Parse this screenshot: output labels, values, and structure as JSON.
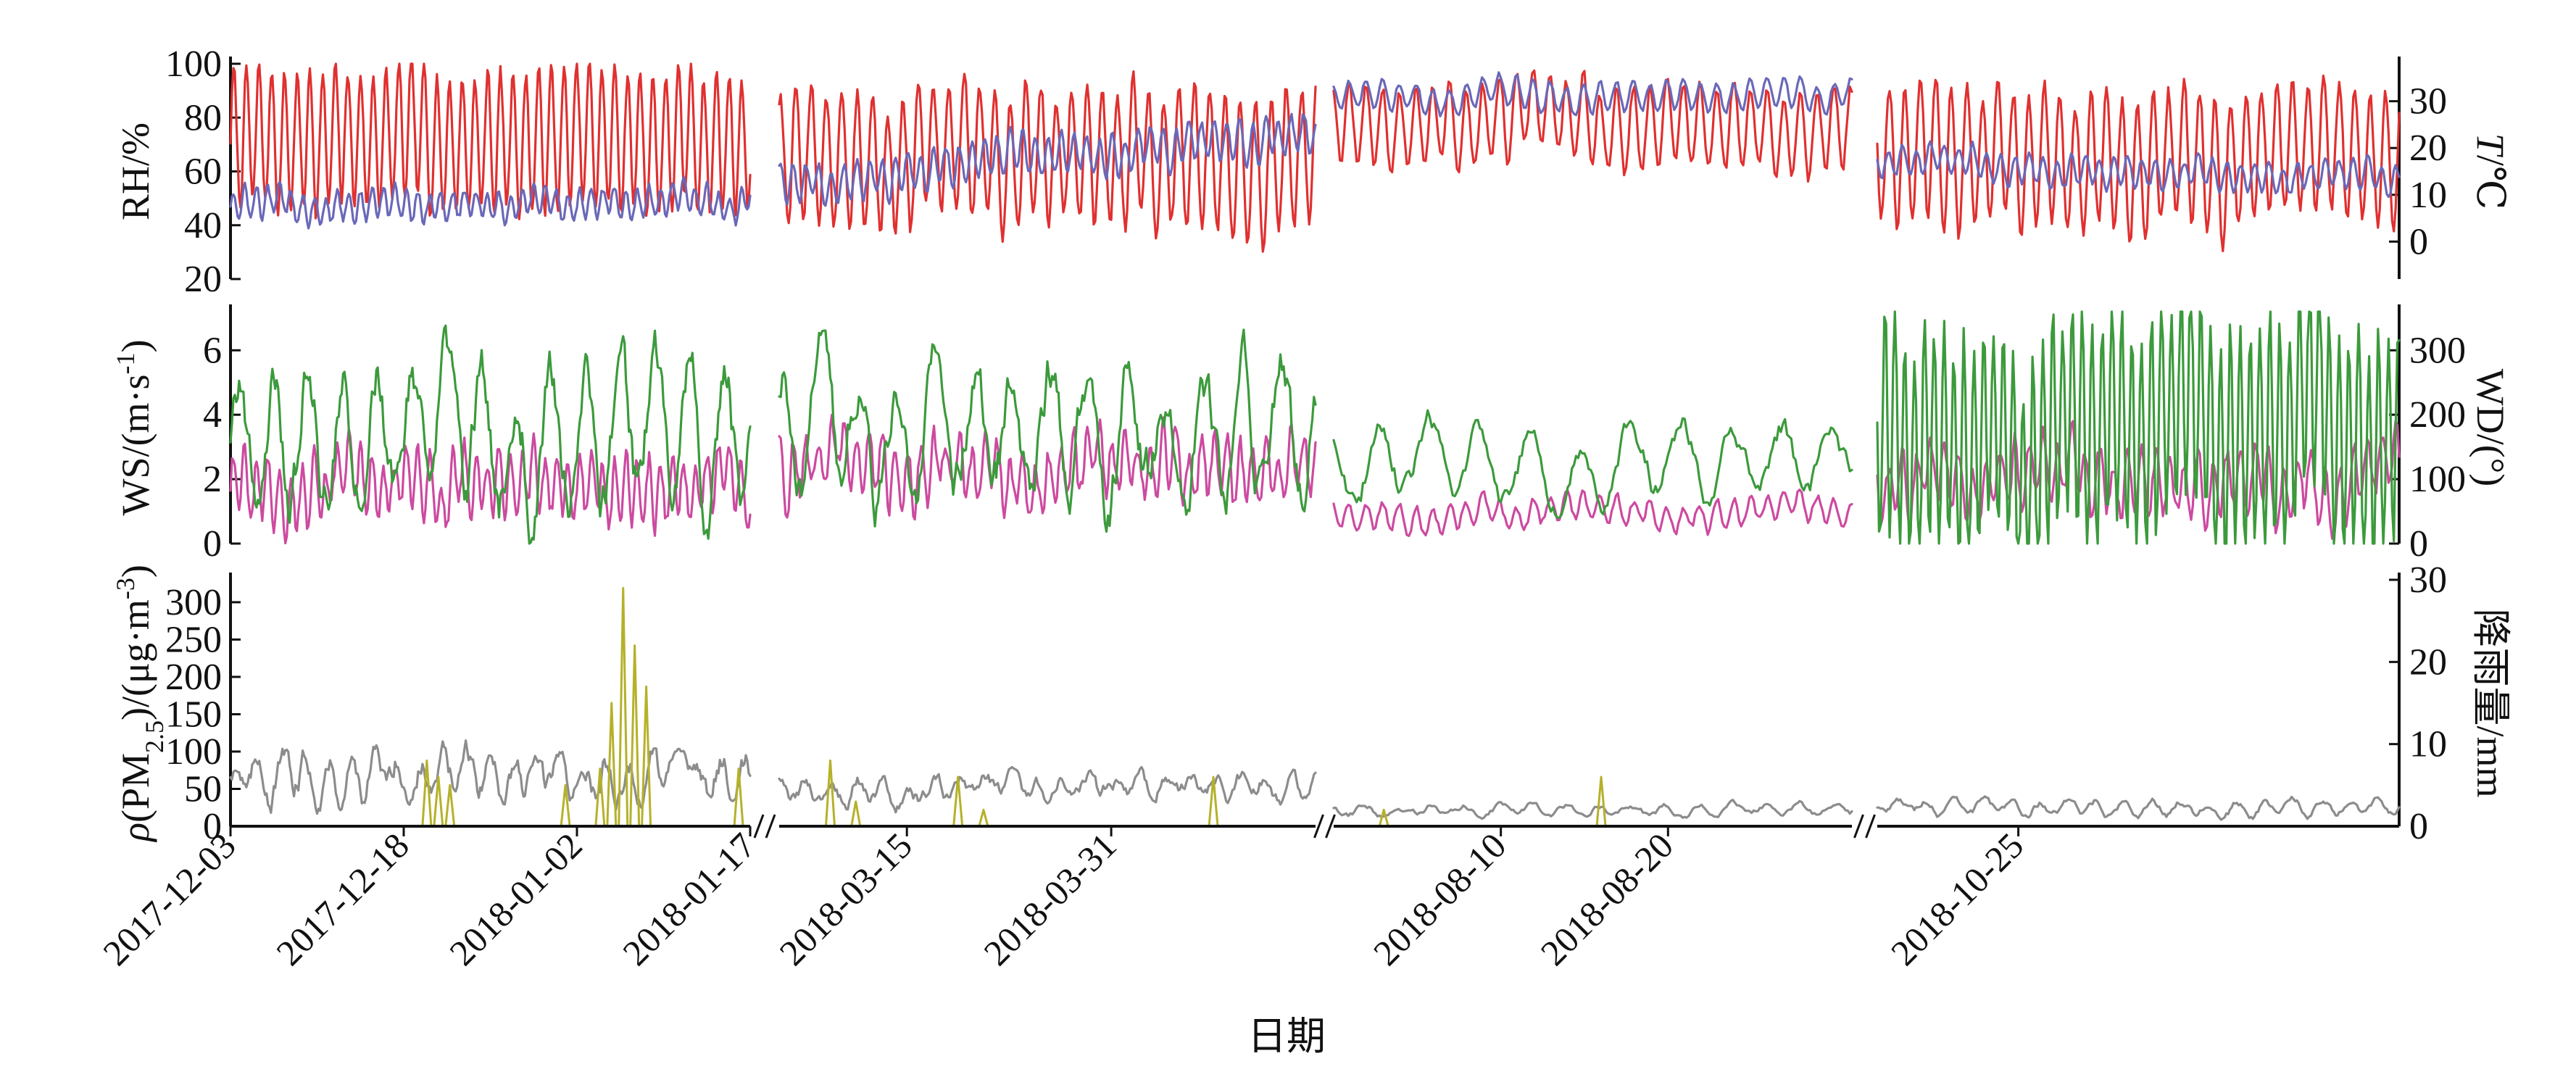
{
  "chart_data": {
    "type": "line",
    "x_axis": {
      "label": "日期",
      "tick_labels": [
        "2017-12-03",
        "2017-12-18",
        "2018-01-02",
        "2018-01-17",
        "2018-03-15",
        "2018-03-31",
        "2018-08-10",
        "2018-08-20",
        "2018-10-25"
      ],
      "segments": [
        {
          "start": "2017-12-03",
          "end": "2018-01-17"
        },
        {
          "start": "2018-03-05",
          "end": "2018-04-16"
        },
        {
          "start": "2018-07-31",
          "end": "2018-08-31"
        },
        {
          "start": "2018-10-15",
          "end": "2018-11-21"
        }
      ],
      "breaks": true
    },
    "panels": [
      {
        "name": "top",
        "left_axis": {
          "label_parts": [
            "RH/%"
          ],
          "range": [
            20,
            100
          ],
          "ticks": [
            20,
            40,
            60,
            80,
            100
          ]
        },
        "right_axis": {
          "label_parts": [
            "T",
            "/℃"
          ],
          "range": [
            -8,
            38
          ],
          "ticks": [
            0,
            10,
            20,
            30
          ]
        },
        "series": [
          {
            "axis": "left",
            "color": "#e03030",
            "note": "RH",
            "segments": [
              {
                "base": 72,
                "amp": 25,
                "period": 1.1,
                "noise": 6
              },
              {
                "base": 66,
                "amp": 25,
                "period": 1.2,
                "noise": 7
              },
              {
                "base": 78,
                "amp": 15,
                "period": 1.0,
                "noise": 5
              },
              {
                "base": 66,
                "amp": 25,
                "period": 1.1,
                "noise": 7
              }
            ]
          },
          {
            "axis": "right",
            "color": "#6a68b8",
            "note": "T",
            "segments": [
              {
                "base": 8,
                "amp": 3,
                "period": 1.0,
                "noise": 2
              },
              {
                "base": 13,
                "amp": 4,
                "period": 1.0,
                "noise": 2,
                "trend": 10
              },
              {
                "base": 31,
                "amp": 3,
                "period": 1.0,
                "noise": 1.5
              },
              {
                "base": 17,
                "amp": 3,
                "period": 1.0,
                "noise": 1.5,
                "trend": -4
              }
            ]
          }
        ]
      },
      {
        "name": "middle",
        "left_axis": {
          "label_parts": [
            "WS/(m·s",
            "-1",
            ")"
          ],
          "range": [
            0,
            7.2
          ],
          "ticks": [
            0,
            2,
            4,
            6
          ]
        },
        "right_axis": {
          "label_parts": [
            "WD/(°)"
          ],
          "range": [
            0,
            360
          ],
          "ticks": [
            0,
            100,
            200,
            300
          ]
        },
        "series": [
          {
            "axis": "left",
            "color": "#cc4aa0",
            "note": "WS",
            "segments": [
              {
                "base": 1.8,
                "amp": 0.9,
                "period": 1.0,
                "noise": 0.7
              },
              {
                "base": 2.2,
                "amp": 0.9,
                "period": 1.0,
                "noise": 0.8
              },
              {
                "base": 1.0,
                "amp": 0.4,
                "period": 1.0,
                "noise": 0.3
              },
              {
                "base": 2.0,
                "amp": 0.9,
                "period": 1.0,
                "noise": 0.8
              }
            ]
          },
          {
            "axis": "right",
            "color": "#3c9a3c",
            "note": "WD",
            "segments": [
              {
                "base": 170,
                "amp": 100,
                "period": 3.0,
                "noise": 60
              },
              {
                "base": 170,
                "amp": 90,
                "period": 3.0,
                "noise": 60
              },
              {
                "base": 130,
                "amp": 50,
                "period": 3.0,
                "noise": 30
              },
              {
                "base": 170,
                "amp": 170,
                "period": 0.7,
                "noise": 60
              }
            ]
          }
        ]
      },
      {
        "name": "bottom",
        "left_axis": {
          "label_parts": [
            "ρ",
            "(PM",
            "2.5",
            ")/(μg·m",
            "-3",
            ")"
          ],
          "range": [
            0,
            330
          ],
          "ticks": [
            0,
            50,
            100,
            150,
            200,
            250,
            300
          ]
        },
        "right_axis": {
          "label_parts": [
            "降雨量/mm"
          ],
          "range": [
            0,
            30
          ],
          "ticks": [
            0,
            10,
            20,
            30
          ]
        },
        "series": [
          {
            "axis": "left",
            "color": "#8c8c8c",
            "note": "PM2.5",
            "segments": [
              {
                "base": 70,
                "amp": 20,
                "period": 2.0,
                "noise": 25
              },
              {
                "base": 50,
                "amp": 12,
                "period": 2.0,
                "noise": 15
              },
              {
                "base": 22,
                "amp": 6,
                "period": 2.0,
                "noise": 6
              },
              {
                "base": 25,
                "amp": 8,
                "period": 2.0,
                "noise": 7
              }
            ]
          },
          {
            "axis": "right",
            "color": "#b5b12a",
            "note": "rain",
            "type": "spikes",
            "segments": [
              {
                "spikes": [
                  [
                    "2017-12-20",
                    8
                  ],
                  [
                    "2017-12-21",
                    6
                  ],
                  [
                    "2017-12-22",
                    5
                  ],
                  [
                    "2018-01-01",
                    5
                  ],
                  [
                    "2018-01-04",
                    7
                  ],
                  [
                    "2018-01-05",
                    15
                  ],
                  [
                    "2018-01-06",
                    29
                  ],
                  [
                    "2018-01-07",
                    22
                  ],
                  [
                    "2018-01-08",
                    17
                  ],
                  [
                    "2018-01-16",
                    7
                  ]
                ]
              },
              {
                "spikes": [
                  [
                    "2018-03-09",
                    8
                  ],
                  [
                    "2018-03-11",
                    3
                  ],
                  [
                    "2018-03-19",
                    6
                  ],
                  [
                    "2018-03-21",
                    2
                  ],
                  [
                    "2018-04-08",
                    6
                  ]
                ]
              },
              {
                "spikes": [
                  [
                    "2018-08-03",
                    2
                  ],
                  [
                    "2018-08-16",
                    6
                  ]
                ]
              },
              {
                "spikes": []
              }
            ]
          }
        ]
      }
    ]
  }
}
